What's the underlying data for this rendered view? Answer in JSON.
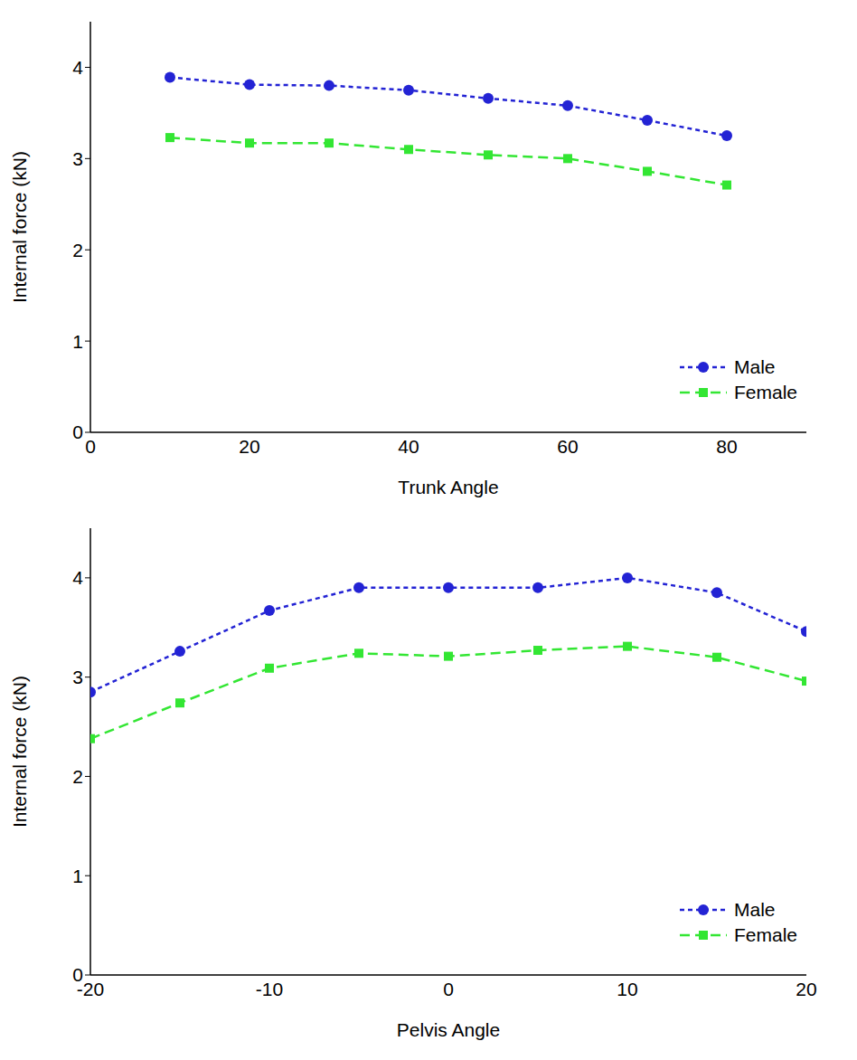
{
  "chart_data": [
    {
      "type": "line",
      "x_label": "Trunk Angle",
      "y_label": "Internal force (kN)",
      "x": [
        10,
        20,
        30,
        40,
        50,
        60,
        70,
        80
      ],
      "xlim": [
        0,
        90
      ],
      "xticks": [
        0,
        20,
        40,
        60,
        80
      ],
      "ylim": [
        0,
        4.5
      ],
      "yticks": [
        0,
        1,
        2,
        3,
        4
      ],
      "grid": false,
      "legend": "lower right",
      "series": [
        {
          "name": "Male",
          "color": "#2323d4",
          "marker": "circle",
          "line_style": "dotted",
          "values": [
            3.89,
            3.81,
            3.8,
            3.75,
            3.66,
            3.58,
            3.42,
            3.25
          ]
        },
        {
          "name": "Female",
          "color": "#33e633",
          "marker": "square",
          "line_style": "dashed",
          "values": [
            3.23,
            3.17,
            3.17,
            3.1,
            3.04,
            3.0,
            2.86,
            2.71
          ]
        }
      ]
    },
    {
      "type": "line",
      "x_label": "Pelvis Angle",
      "y_label": "Internal force (kN)",
      "x": [
        -20,
        -15,
        -10,
        -5,
        0,
        5,
        10,
        15,
        20
      ],
      "xlim": [
        -20,
        20
      ],
      "xticks": [
        -20,
        -10,
        0,
        10,
        20
      ],
      "ylim": [
        0,
        4.5
      ],
      "yticks": [
        0,
        1,
        2,
        3,
        4
      ],
      "grid": false,
      "legend": "lower right",
      "series": [
        {
          "name": "Male",
          "color": "#2323d4",
          "marker": "circle",
          "line_style": "dotted",
          "values": [
            2.85,
            3.26,
            3.67,
            3.9,
            3.9,
            3.9,
            4.0,
            3.85,
            3.46
          ]
        },
        {
          "name": "Female",
          "color": "#33e633",
          "marker": "square",
          "line_style": "dashed",
          "values": [
            2.38,
            2.74,
            3.09,
            3.24,
            3.21,
            3.27,
            3.31,
            3.2,
            2.96
          ]
        }
      ]
    }
  ]
}
